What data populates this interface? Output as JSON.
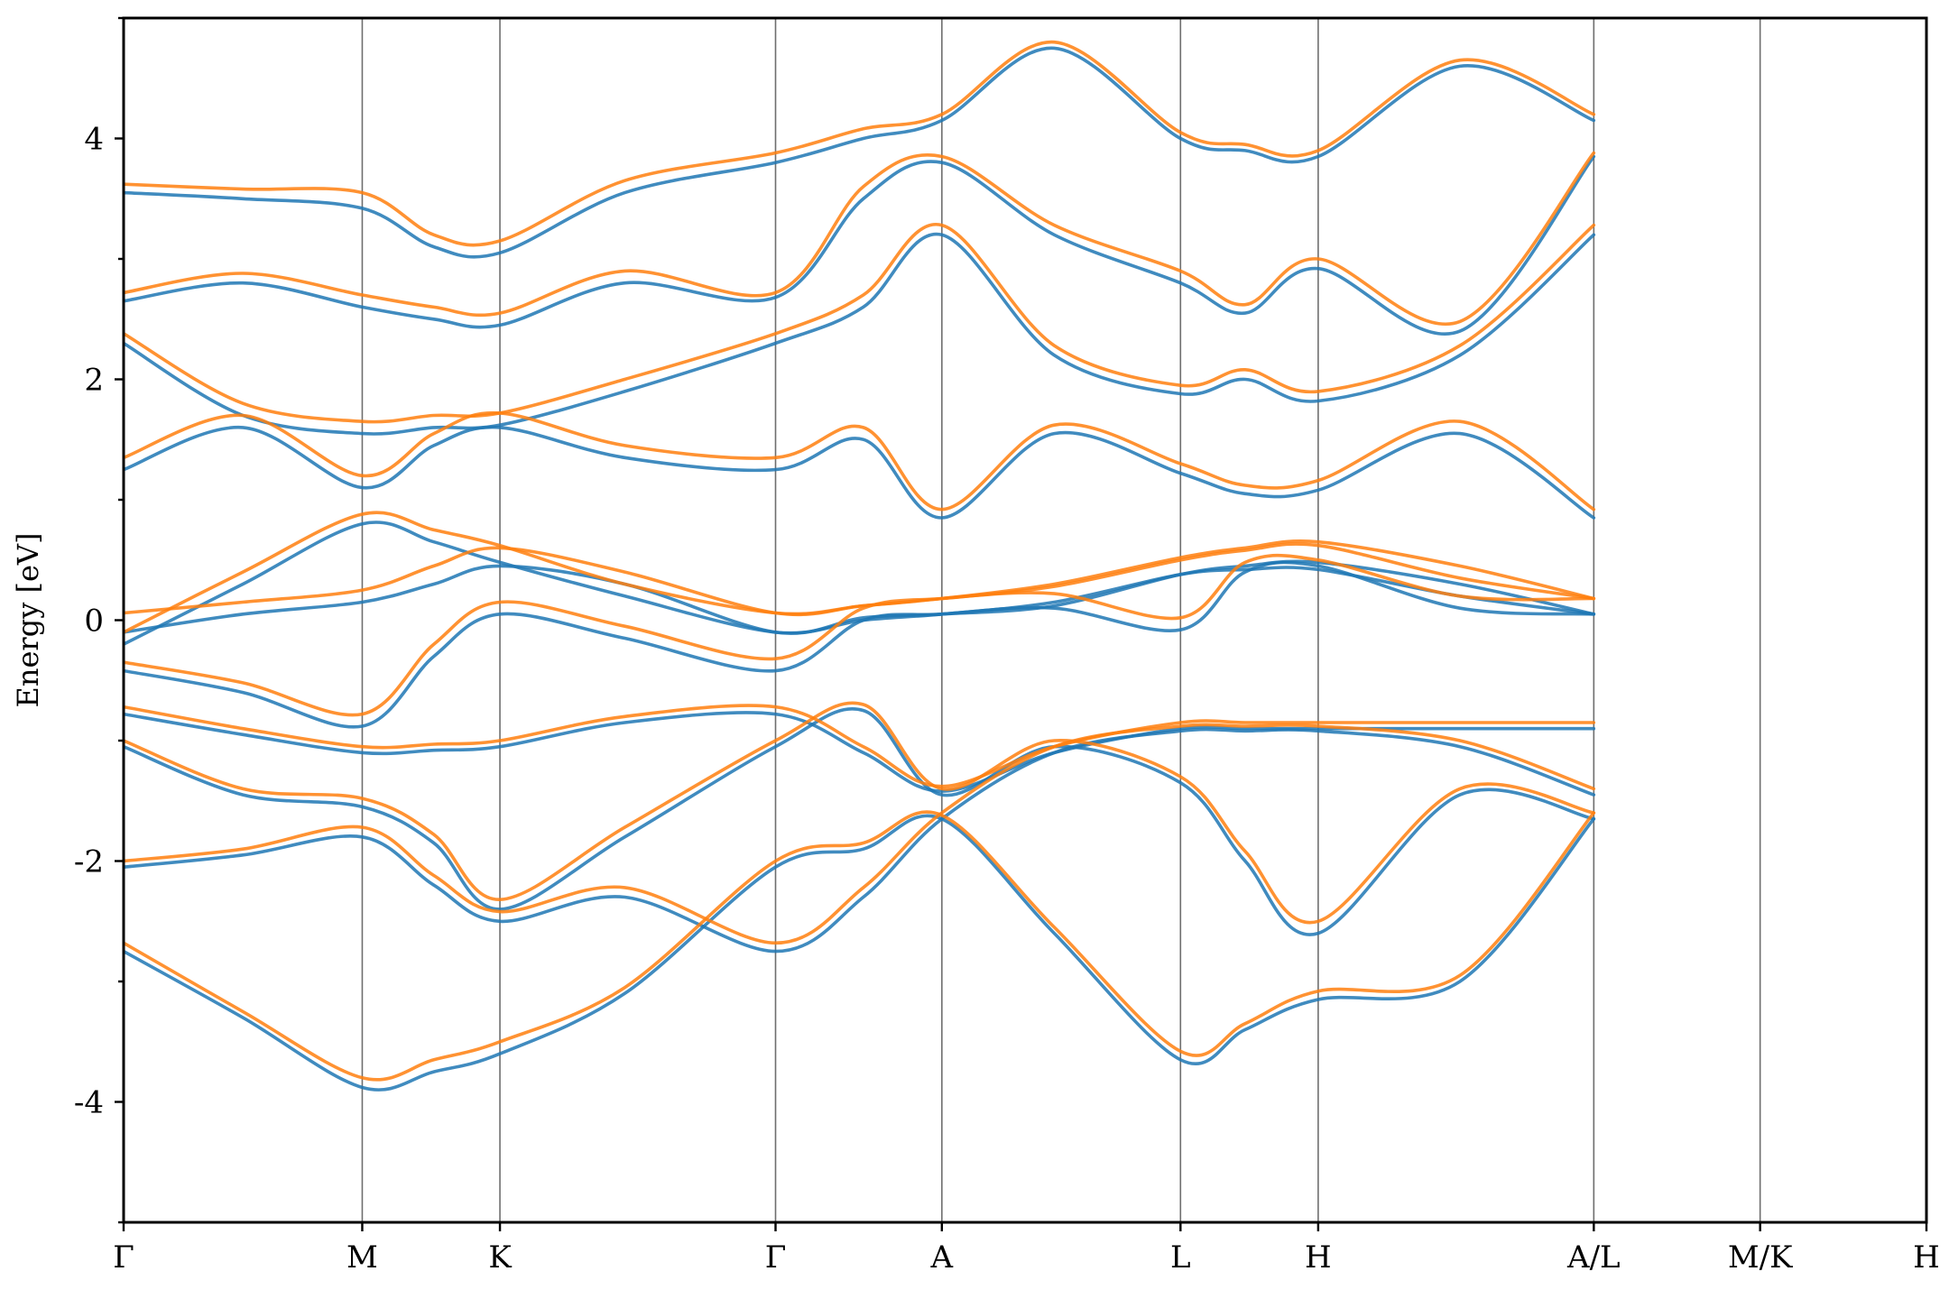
{
  "chart_data": {
    "type": "line",
    "title": "",
    "xlabel": "",
    "ylabel": "Energy [eV]",
    "ylim": [
      -5,
      5
    ],
    "yticks": [
      -4,
      -2,
      0,
      2,
      4
    ],
    "ytick_labels": [
      "-4",
      "-2",
      "0",
      "2",
      "4"
    ],
    "grid": false,
    "legend": "none",
    "kpath": [
      {
        "label": "Γ",
        "x": 0.0
      },
      {
        "label": "M",
        "x": 1.0
      },
      {
        "label": "K",
        "x": 1.577
      },
      {
        "label": "Γ",
        "x": 2.732
      },
      {
        "label": "A",
        "x": 3.429
      },
      {
        "label": "L",
        "x": 4.429
      },
      {
        "label": "H",
        "x": 5.006
      },
      {
        "label": "A/L",
        "x": 6.161
      },
      {
        "label": "M/K",
        "x": 6.858
      },
      {
        "label": "H",
        "x": 7.555
      }
    ],
    "series": [
      {
        "color": "#1f77b4",
        "bands": [
          {
            "x": [
              0,
              0.5,
              1,
              1.3,
              1.577,
              2.1,
              2.732,
              3.1,
              3.429,
              3.9,
              4.429,
              4.7,
              5.006,
              5.6,
              6.161
            ],
            "y": [
              -2.75,
              -3.3,
              -3.88,
              -3.75,
              -3.6,
              -3.1,
              -2.05,
              -1.9,
              -1.65,
              -2.6,
              -3.65,
              -3.4,
              -3.15,
              -3.0,
              -1.65
            ]
          },
          {
            "x": [
              0,
              0.5,
              1,
              1.3,
              1.577,
              2.1,
              2.732,
              3.1,
              3.429,
              3.9,
              4.429,
              4.7,
              5.006,
              5.6,
              6.161
            ],
            "y": [
              -2.05,
              -1.95,
              -1.8,
              -2.2,
              -2.5,
              -2.3,
              -2.75,
              -2.3,
              -1.65,
              -1.1,
              -0.92,
              -0.92,
              -0.92,
              -1.05,
              -1.45
            ]
          },
          {
            "x": [
              0,
              0.5,
              1,
              1.3,
              1.577,
              2.1,
              2.732,
              3.1,
              3.429,
              3.9,
              4.429,
              4.7,
              5.006,
              5.6,
              6.161
            ],
            "y": [
              -1.05,
              -1.45,
              -1.55,
              -1.85,
              -2.4,
              -1.8,
              -1.05,
              -0.75,
              -1.45,
              -1.05,
              -1.35,
              -2.0,
              -2.6,
              -1.45,
              -1.65
            ]
          },
          {
            "x": [
              0,
              0.5,
              1,
              1.3,
              1.577,
              2.1,
              2.732,
              3.1,
              3.429,
              3.9,
              4.429,
              4.7,
              5.006,
              5.6,
              6.161
            ],
            "y": [
              -0.78,
              -0.95,
              -1.1,
              -1.08,
              -1.05,
              -0.85,
              -0.78,
              -1.1,
              -1.42,
              -1.1,
              -0.9,
              -0.9,
              -0.9,
              -0.9,
              -0.9
            ]
          },
          {
            "x": [
              0,
              0.5,
              1,
              1.3,
              1.577,
              2.1,
              2.732,
              3.1,
              3.429,
              3.9,
              4.429,
              4.7,
              5.006,
              5.6,
              6.161
            ],
            "y": [
              -0.42,
              -0.6,
              -0.88,
              -0.3,
              0.05,
              -0.15,
              -0.42,
              0.0,
              0.05,
              0.1,
              -0.08,
              0.4,
              0.45,
              0.1,
              0.05
            ]
          },
          {
            "x": [
              0,
              0.5,
              1,
              1.3,
              1.577,
              2.1,
              2.732,
              3.1,
              3.429,
              3.9,
              4.429,
              4.7,
              5.006,
              5.6,
              6.161
            ],
            "y": [
              -0.1,
              0.05,
              0.15,
              0.3,
              0.45,
              0.3,
              -0.1,
              0.02,
              0.05,
              0.12,
              0.38,
              0.45,
              0.48,
              0.3,
              0.05
            ]
          },
          {
            "x": [
              0,
              0.5,
              1,
              1.3,
              1.577,
              2.1,
              2.732,
              3.1,
              3.429,
              3.9,
              4.429,
              4.7,
              5.006,
              5.6,
              6.161
            ],
            "y": [
              -0.2,
              0.3,
              0.8,
              0.65,
              0.48,
              0.2,
              -0.1,
              0.0,
              0.05,
              0.15,
              0.38,
              0.42,
              0.42,
              0.2,
              0.05
            ]
          },
          {
            "x": [
              0,
              0.5,
              1,
              1.3,
              1.577,
              2.1,
              2.732,
              3.1,
              3.429,
              3.9,
              4.429,
              4.7,
              5.006,
              5.6,
              6.161
            ],
            "y": [
              1.25,
              1.6,
              1.1,
              1.45,
              1.6,
              1.35,
              1.25,
              1.5,
              0.85,
              1.55,
              1.22,
              1.05,
              1.08,
              1.55,
              0.85
            ]
          },
          {
            "x": [
              0,
              0.5,
              1,
              1.3,
              1.577,
              2.1,
              2.732,
              3.1,
              3.429,
              3.9,
              4.429,
              4.7,
              5.006,
              5.6,
              6.161
            ],
            "y": [
              2.3,
              1.7,
              1.55,
              1.6,
              1.62,
              1.9,
              2.3,
              2.6,
              3.2,
              2.2,
              1.88,
              2.0,
              1.82,
              2.2,
              3.2
            ]
          },
          {
            "x": [
              0,
              0.5,
              1,
              1.3,
              1.577,
              2.1,
              2.732,
              3.1,
              3.429,
              3.9,
              4.429,
              4.7,
              5.006,
              5.6,
              6.161
            ],
            "y": [
              2.65,
              2.8,
              2.6,
              2.5,
              2.45,
              2.8,
              2.68,
              3.5,
              3.8,
              3.2,
              2.8,
              2.55,
              2.92,
              2.4,
              3.85
            ]
          },
          {
            "x": [
              0,
              0.5,
              1,
              1.3,
              1.577,
              2.1,
              2.732,
              3.1,
              3.429,
              3.9,
              4.429,
              4.7,
              5.006,
              5.6,
              6.161
            ],
            "y": [
              3.55,
              3.5,
              3.42,
              3.1,
              3.05,
              3.55,
              3.8,
              4.0,
              4.15,
              4.75,
              4.0,
              3.9,
              3.85,
              4.6,
              4.15
            ]
          }
        ]
      },
      {
        "color": "#ff7f0e",
        "bands": [
          {
            "x": [
              0,
              0.5,
              1,
              1.3,
              1.577,
              2.1,
              2.732,
              3.1,
              3.429,
              3.9,
              4.429,
              4.7,
              5.006,
              5.6,
              6.161
            ],
            "y": [
              -2.68,
              -3.25,
              -3.8,
              -3.65,
              -3.5,
              -3.05,
              -2.0,
              -1.85,
              -1.62,
              -2.55,
              -3.58,
              -3.35,
              -3.08,
              -2.95,
              -1.6
            ]
          },
          {
            "x": [
              0,
              0.5,
              1,
              1.3,
              1.577,
              2.1,
              2.732,
              3.1,
              3.429,
              3.9,
              4.429,
              4.7,
              5.006,
              5.6,
              6.161
            ],
            "y": [
              -2.0,
              -1.9,
              -1.72,
              -2.12,
              -2.42,
              -2.22,
              -2.68,
              -2.22,
              -1.6,
              -1.05,
              -0.88,
              -0.88,
              -0.88,
              -1.0,
              -1.4
            ]
          },
          {
            "x": [
              0,
              0.5,
              1,
              1.3,
              1.577,
              2.1,
              2.732,
              3.1,
              3.429,
              3.9,
              4.429,
              4.7,
              5.006,
              5.6,
              6.161
            ],
            "y": [
              -1.0,
              -1.4,
              -1.48,
              -1.78,
              -2.32,
              -1.72,
              -1.0,
              -0.7,
              -1.4,
              -1.0,
              -1.3,
              -1.92,
              -2.5,
              -1.4,
              -1.6
            ]
          },
          {
            "x": [
              0,
              0.5,
              1,
              1.3,
              1.577,
              2.1,
              2.732,
              3.1,
              3.429,
              3.9,
              4.429,
              4.7,
              5.006,
              5.6,
              6.161
            ],
            "y": [
              -0.72,
              -0.9,
              -1.05,
              -1.03,
              -1.0,
              -0.8,
              -0.72,
              -1.05,
              -1.38,
              -1.05,
              -0.85,
              -0.85,
              -0.85,
              -0.85,
              -0.85
            ]
          },
          {
            "x": [
              0,
              0.5,
              1,
              1.3,
              1.577,
              2.1,
              2.732,
              3.1,
              3.429,
              3.9,
              4.429,
              4.7,
              5.006,
              5.6,
              6.161
            ],
            "y": [
              -0.35,
              -0.52,
              -0.78,
              -0.2,
              0.15,
              -0.05,
              -0.32,
              0.1,
              0.18,
              0.22,
              0.02,
              0.48,
              0.5,
              0.2,
              0.18
            ]
          },
          {
            "x": [
              0,
              0.5,
              1,
              1.3,
              1.577,
              2.1,
              2.732,
              3.1,
              3.429,
              3.9,
              4.429,
              4.7,
              5.006,
              5.6,
              6.161
            ],
            "y": [
              0.06,
              0.15,
              0.25,
              0.45,
              0.6,
              0.4,
              0.06,
              0.12,
              0.18,
              0.3,
              0.52,
              0.6,
              0.65,
              0.45,
              0.18
            ]
          },
          {
            "x": [
              0,
              0.5,
              1,
              1.3,
              1.577,
              2.1,
              2.732,
              3.1,
              3.429,
              3.9,
              4.429,
              4.7,
              5.006,
              5.6,
              6.161
            ],
            "y": [
              -0.1,
              0.4,
              0.88,
              0.75,
              0.62,
              0.3,
              0.06,
              0.12,
              0.18,
              0.28,
              0.5,
              0.58,
              0.62,
              0.35,
              0.18
            ]
          },
          {
            "x": [
              0,
              0.5,
              1,
              1.3,
              1.577,
              2.1,
              2.732,
              3.1,
              3.429,
              3.9,
              4.429,
              4.7,
              5.006,
              5.6,
              6.161
            ],
            "y": [
              1.35,
              1.7,
              1.2,
              1.55,
              1.72,
              1.45,
              1.35,
              1.6,
              0.92,
              1.62,
              1.3,
              1.12,
              1.16,
              1.65,
              0.92
            ]
          },
          {
            "x": [
              0,
              0.5,
              1,
              1.3,
              1.577,
              2.1,
              2.732,
              3.1,
              3.429,
              3.9,
              4.429,
              4.7,
              5.006,
              5.6,
              6.161
            ],
            "y": [
              2.38,
              1.8,
              1.65,
              1.7,
              1.72,
              2.0,
              2.38,
              2.7,
              3.28,
              2.28,
              1.95,
              2.08,
              1.9,
              2.28,
              3.28
            ]
          },
          {
            "x": [
              0,
              0.5,
              1,
              1.3,
              1.577,
              2.1,
              2.732,
              3.1,
              3.429,
              3.9,
              4.429,
              4.7,
              5.006,
              5.6,
              6.161
            ],
            "y": [
              2.72,
              2.88,
              2.7,
              2.6,
              2.55,
              2.9,
              2.72,
              3.6,
              3.85,
              3.28,
              2.9,
              2.62,
              3.0,
              2.48,
              3.88
            ]
          },
          {
            "x": [
              0,
              0.5,
              1,
              1.3,
              1.577,
              2.1,
              2.732,
              3.1,
              3.429,
              3.9,
              4.429,
              4.7,
              5.006,
              5.6,
              6.161
            ],
            "y": [
              3.62,
              3.58,
              3.55,
              3.2,
              3.15,
              3.65,
              3.88,
              4.08,
              4.2,
              4.8,
              4.05,
              3.95,
              3.9,
              4.65,
              4.2
            ]
          }
        ]
      }
    ]
  }
}
